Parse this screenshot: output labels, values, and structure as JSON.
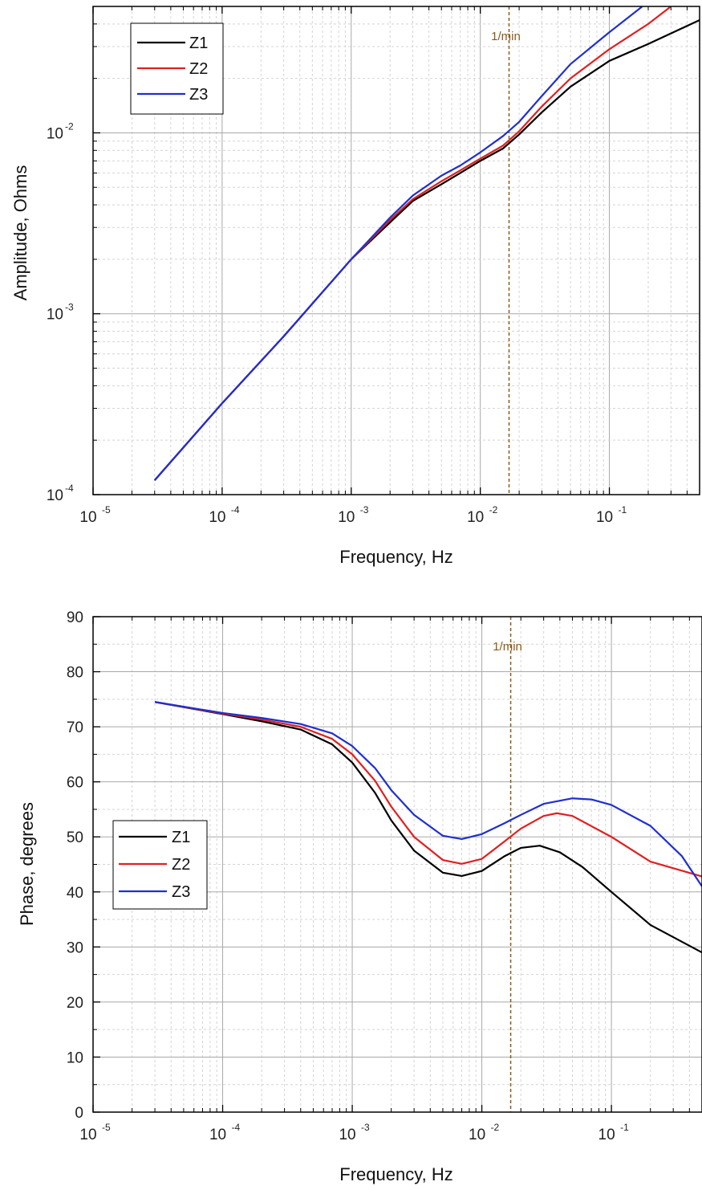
{
  "chart_data": [
    {
      "type": "line",
      "xscale": "log",
      "yscale": "log",
      "xlabel": "Frequency, Hz",
      "ylabel": "Amplitude, Ohms",
      "xlim": [
        1e-05,
        0.5
      ],
      "ylim": [
        0.0001,
        0.05
      ],
      "x_ticks": [
        {
          "base": "10",
          "exp": "-5"
        },
        {
          "base": "10",
          "exp": "-4"
        },
        {
          "base": "10",
          "exp": "-3"
        },
        {
          "base": "10",
          "exp": "-2"
        },
        {
          "base": "10",
          "exp": "-1"
        }
      ],
      "y_ticks": [
        {
          "base": "10",
          "exp": "-4"
        },
        {
          "base": "10",
          "exp": "-3"
        },
        {
          "base": "10",
          "exp": "-2"
        }
      ],
      "grid": true,
      "legend": "top-left",
      "annotation": {
        "label": "1/min",
        "x": 0.0167,
        "color": "#8B5A1A"
      },
      "series": [
        {
          "name": "Z1",
          "color": "#000000",
          "x": [
            3e-05,
            0.0001,
            0.0003,
            0.001,
            0.002,
            0.003,
            0.005,
            0.007,
            0.01,
            0.015,
            0.02,
            0.03,
            0.05,
            0.1,
            0.2,
            0.5
          ],
          "y": [
            0.00012,
            0.00032,
            0.00075,
            0.002,
            0.0032,
            0.0042,
            0.0052,
            0.006,
            0.007,
            0.0082,
            0.0098,
            0.013,
            0.018,
            0.025,
            0.031,
            0.042
          ]
        },
        {
          "name": "Z2",
          "color": "#E02020",
          "x": [
            3e-05,
            0.0001,
            0.0003,
            0.001,
            0.002,
            0.003,
            0.005,
            0.007,
            0.01,
            0.015,
            0.02,
            0.03,
            0.05,
            0.1,
            0.2,
            0.3
          ],
          "y": [
            0.00012,
            0.00032,
            0.00075,
            0.002,
            0.0033,
            0.0043,
            0.0054,
            0.0062,
            0.0072,
            0.0085,
            0.0102,
            0.014,
            0.02,
            0.029,
            0.04,
            0.05
          ]
        },
        {
          "name": "Z3",
          "color": "#1F2FD0",
          "x": [
            3e-05,
            0.0001,
            0.0003,
            0.001,
            0.002,
            0.003,
            0.005,
            0.007,
            0.01,
            0.015,
            0.02,
            0.03,
            0.05,
            0.1,
            0.18
          ],
          "y": [
            0.00012,
            0.00032,
            0.00075,
            0.002,
            0.0034,
            0.0045,
            0.0058,
            0.0066,
            0.0078,
            0.0096,
            0.0115,
            0.016,
            0.024,
            0.036,
            0.05
          ]
        }
      ]
    },
    {
      "type": "line",
      "xscale": "log",
      "yscale": "linear",
      "xlabel": "Frequency, Hz",
      "ylabel": "Phase, degrees",
      "xlim": [
        1e-05,
        0.5
      ],
      "ylim": [
        0,
        90
      ],
      "x_ticks": [
        {
          "base": "10",
          "exp": "-5"
        },
        {
          "base": "10",
          "exp": "-4"
        },
        {
          "base": "10",
          "exp": "-3"
        },
        {
          "base": "10",
          "exp": "-2"
        },
        {
          "base": "10",
          "exp": "-1"
        }
      ],
      "y_ticks": [
        "0",
        "10",
        "20",
        "30",
        "40",
        "50",
        "60",
        "70",
        "80",
        "90"
      ],
      "grid": true,
      "legend": "center-left",
      "annotation": {
        "label": "1/min",
        "x": 0.0167,
        "color": "#8B5A1A"
      },
      "series": [
        {
          "name": "Z1",
          "color": "#000000",
          "x": [
            3e-05,
            0.0001,
            0.0002,
            0.0004,
            0.0007,
            0.001,
            0.0015,
            0.002,
            0.003,
            0.005,
            0.007,
            0.01,
            0.015,
            0.02,
            0.028,
            0.04,
            0.06,
            0.1,
            0.2,
            0.5
          ],
          "y": [
            74.5,
            72.3,
            71.0,
            69.5,
            66.8,
            63.5,
            58.0,
            53.0,
            47.5,
            43.5,
            42.9,
            43.8,
            46.5,
            48.0,
            48.4,
            47.2,
            44.5,
            40.0,
            34.0,
            29.0
          ]
        },
        {
          "name": "Z2",
          "color": "#E02020",
          "x": [
            3e-05,
            0.0001,
            0.0002,
            0.0004,
            0.0007,
            0.001,
            0.0015,
            0.002,
            0.003,
            0.005,
            0.007,
            0.01,
            0.015,
            0.02,
            0.03,
            0.038,
            0.05,
            0.1,
            0.2,
            0.5
          ],
          "y": [
            74.5,
            72.4,
            71.3,
            70.0,
            67.8,
            65.0,
            60.2,
            55.5,
            50.0,
            45.8,
            45.1,
            46.0,
            49.2,
            51.5,
            53.8,
            54.3,
            53.8,
            50.0,
            45.5,
            42.8
          ]
        },
        {
          "name": "Z3",
          "color": "#1F2FD0",
          "x": [
            3e-05,
            0.0001,
            0.0002,
            0.0004,
            0.0007,
            0.001,
            0.0015,
            0.002,
            0.003,
            0.005,
            0.007,
            0.01,
            0.015,
            0.02,
            0.03,
            0.05,
            0.07,
            0.1,
            0.2,
            0.35,
            0.5
          ],
          "y": [
            74.5,
            72.5,
            71.6,
            70.5,
            68.8,
            66.5,
            62.5,
            58.5,
            54.0,
            50.2,
            49.6,
            50.5,
            52.5,
            54.0,
            56.0,
            57.0,
            56.8,
            55.8,
            52.0,
            46.5,
            41.0
          ]
        }
      ]
    }
  ]
}
